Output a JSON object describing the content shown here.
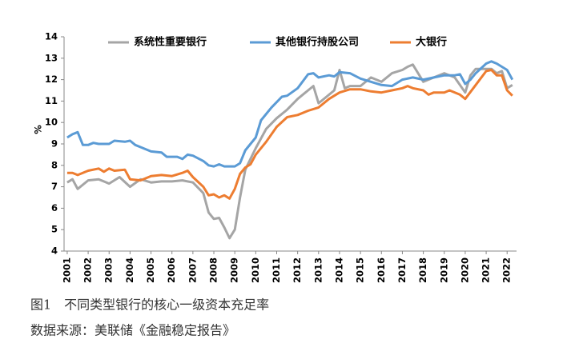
{
  "chart_data": {
    "type": "line",
    "y_label": "%",
    "caption": "图1　不同类型银行的核心一级资本充足率",
    "source": "数据来源：美联储《金融稳定报告》",
    "legend": "top",
    "xlim": [
      2000.85,
      2022.45
    ],
    "xticks": [
      2001,
      2002,
      2003,
      2004,
      2005,
      2006,
      2007,
      2008,
      2009,
      2010,
      2011,
      2012,
      2013,
      2014,
      2015,
      2016,
      2017,
      2018,
      2019,
      2020,
      2021,
      2022
    ],
    "ylim": [
      4,
      14
    ],
    "yticks": [
      4,
      5,
      6,
      7,
      8,
      9,
      10,
      11,
      12,
      13,
      14
    ],
    "series": [
      {
        "name": "系统性重要银行",
        "color": "#a5a5a5",
        "x": [
          2001,
          2001.25,
          2001.5,
          2002,
          2002.5,
          2003,
          2003.5,
          2004,
          2004.5,
          2005,
          2005.5,
          2006,
          2006.5,
          2007,
          2007.5,
          2007.75,
          2008,
          2008.25,
          2008.5,
          2008.75,
          2009,
          2009.25,
          2009.5,
          2009.75,
          2010,
          2010.5,
          2011,
          2011.5,
          2012,
          2012.5,
          2012.75,
          2013,
          2013.5,
          2013.75,
          2014,
          2014.25,
          2014.5,
          2015,
          2015.5,
          2016,
          2016.5,
          2017,
          2017.25,
          2017.5,
          2017.75,
          2018,
          2018.5,
          2019,
          2019.5,
          2020,
          2020.25,
          2020.5,
          2021,
          2021.25,
          2021.5,
          2021.75,
          2022,
          2022.25
        ],
        "values": [
          7.2,
          7.35,
          6.9,
          7.3,
          7.35,
          7.15,
          7.45,
          7.0,
          7.35,
          7.2,
          7.25,
          7.25,
          7.3,
          7.2,
          6.7,
          5.8,
          5.5,
          5.55,
          5.1,
          4.6,
          5.0,
          6.5,
          7.8,
          8.3,
          8.8,
          9.7,
          10.2,
          10.6,
          11.1,
          11.5,
          11.7,
          10.9,
          11.3,
          11.5,
          12.45,
          11.6,
          11.7,
          11.7,
          12.1,
          11.9,
          12.3,
          12.45,
          12.6,
          12.7,
          12.3,
          11.9,
          12.1,
          12.3,
          12.1,
          11.4,
          12.2,
          12.5,
          12.5,
          12.5,
          12.3,
          12.4,
          11.6,
          11.75
        ]
      },
      {
        "name": "其他银行持股公司",
        "color": "#5b9bd5",
        "x": [
          2001,
          2001.25,
          2001.5,
          2001.75,
          2002,
          2002.25,
          2002.5,
          2003,
          2003.25,
          2003.75,
          2004,
          2004.25,
          2004.5,
          2005,
          2005.5,
          2005.75,
          2006.25,
          2006.5,
          2006.75,
          2007,
          2007.5,
          2007.75,
          2008,
          2008.25,
          2008.5,
          2009,
          2009.25,
          2009.5,
          2010,
          2010.25,
          2010.75,
          2011.25,
          2011.5,
          2012,
          2012.5,
          2012.75,
          2013,
          2013.5,
          2013.75,
          2014,
          2014.5,
          2015,
          2015.5,
          2016,
          2016.5,
          2017,
          2017.5,
          2018,
          2018.5,
          2019,
          2019.5,
          2019.75,
          2020,
          2020.25,
          2020.5,
          2021,
          2021.25,
          2021.5,
          2022,
          2022.25
        ],
        "values": [
          9.3,
          9.45,
          9.55,
          8.95,
          8.95,
          9.05,
          9.0,
          9.0,
          9.15,
          9.1,
          9.15,
          8.95,
          8.85,
          8.65,
          8.6,
          8.4,
          8.4,
          8.3,
          8.5,
          8.45,
          8.2,
          8.0,
          7.95,
          8.05,
          7.95,
          7.95,
          8.1,
          8.7,
          9.3,
          10.1,
          10.7,
          11.2,
          11.25,
          11.6,
          12.25,
          12.3,
          12.1,
          12.2,
          12.15,
          12.35,
          12.3,
          12.05,
          11.9,
          11.75,
          11.7,
          12.0,
          12.1,
          12.0,
          12.1,
          12.2,
          12.2,
          12.25,
          11.8,
          12.0,
          12.3,
          12.75,
          12.85,
          12.75,
          12.45,
          12.0
        ]
      },
      {
        "name": "大银行",
        "color": "#ed7d31",
        "x": [
          2001,
          2001.25,
          2001.5,
          2002,
          2002.5,
          2002.75,
          2003,
          2003.25,
          2003.75,
          2004,
          2004.5,
          2005,
          2005.5,
          2006,
          2006.5,
          2006.75,
          2007,
          2007.5,
          2007.75,
          2008,
          2008.25,
          2008.5,
          2008.75,
          2009,
          2009.25,
          2009.5,
          2009.75,
          2010,
          2010.5,
          2011,
          2011.5,
          2012,
          2012.5,
          2013,
          2013.5,
          2014,
          2014.5,
          2015,
          2015.5,
          2016,
          2016.5,
          2017,
          2017.25,
          2017.5,
          2018,
          2018.25,
          2018.5,
          2019,
          2019.25,
          2019.75,
          2020,
          2020.5,
          2021,
          2021.25,
          2021.5,
          2021.75,
          2022,
          2022.25
        ],
        "values": [
          7.65,
          7.65,
          7.55,
          7.75,
          7.85,
          7.7,
          7.85,
          7.75,
          7.8,
          7.35,
          7.3,
          7.5,
          7.55,
          7.5,
          7.65,
          7.75,
          7.45,
          7.0,
          6.6,
          6.65,
          6.5,
          6.6,
          6.45,
          6.9,
          7.6,
          7.9,
          8.05,
          8.5,
          9.1,
          9.8,
          10.25,
          10.35,
          10.55,
          10.7,
          11.1,
          11.4,
          11.55,
          11.55,
          11.45,
          11.4,
          11.5,
          11.6,
          11.7,
          11.6,
          11.5,
          11.3,
          11.4,
          11.4,
          11.5,
          11.3,
          11.1,
          11.75,
          12.4,
          12.45,
          12.2,
          12.2,
          11.5,
          11.25
        ]
      }
    ]
  }
}
